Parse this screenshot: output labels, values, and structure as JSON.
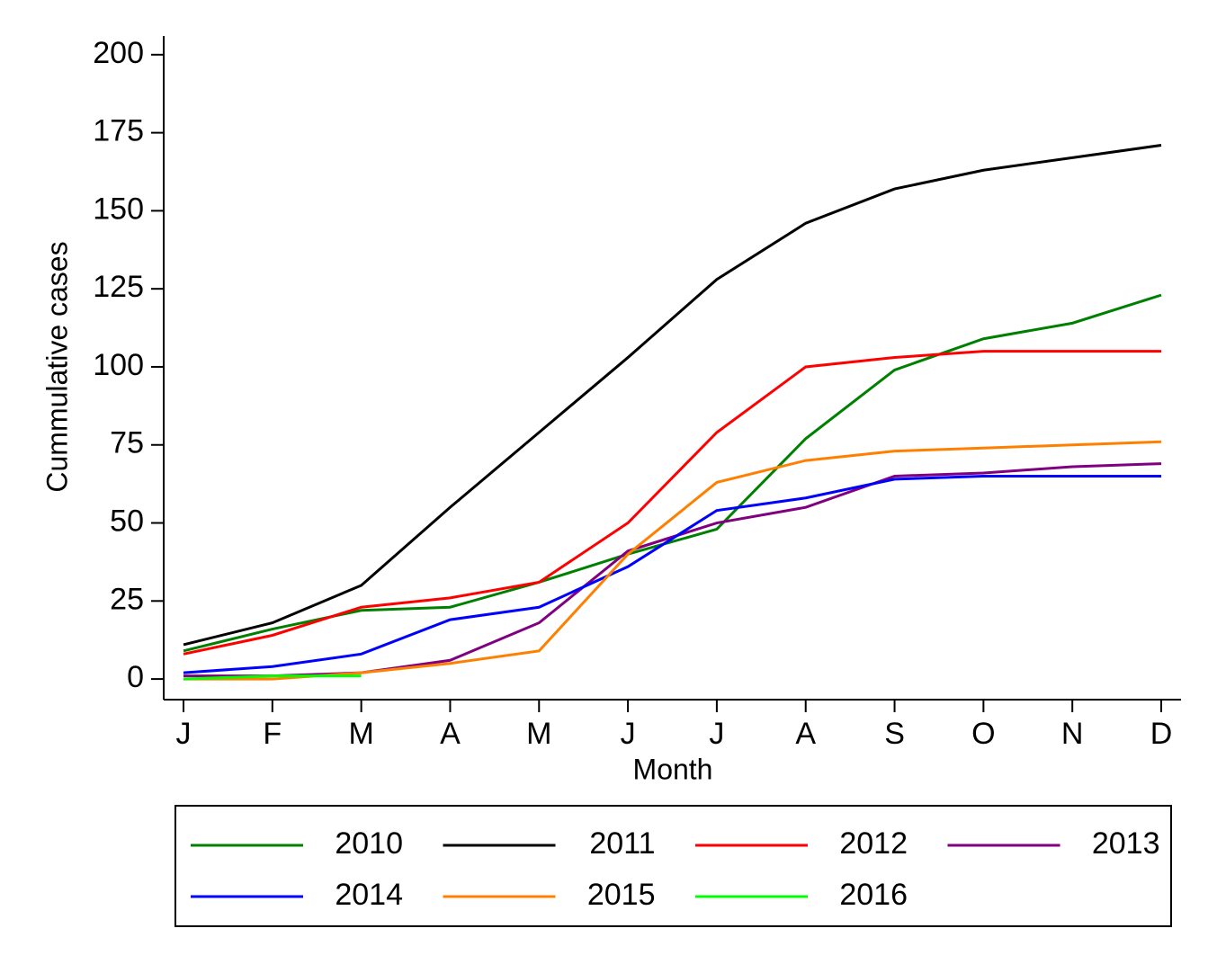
{
  "chart_data": {
    "type": "line",
    "xlabel": "Month",
    "ylabel": "Cummulative cases",
    "categories": [
      "J",
      "F",
      "M",
      "A",
      "M",
      "J",
      "J",
      "A",
      "S",
      "O",
      "N",
      "D"
    ],
    "series": [
      {
        "name": "2010",
        "color": "#008000",
        "values": [
          9,
          16,
          22,
          23,
          31,
          40,
          48,
          77,
          99,
          109,
          114,
          123
        ]
      },
      {
        "name": "2011",
        "color": "#000000",
        "values": [
          11,
          18,
          30,
          55,
          79,
          103,
          128,
          146,
          157,
          163,
          167,
          171
        ]
      },
      {
        "name": "2012",
        "color": "#ff0000",
        "values": [
          8,
          14,
          23,
          26,
          31,
          50,
          79,
          100,
          103,
          105,
          105,
          105
        ]
      },
      {
        "name": "2013",
        "color": "#800080",
        "values": [
          1,
          1,
          2,
          6,
          18,
          41,
          50,
          55,
          65,
          66,
          68,
          69
        ]
      },
      {
        "name": "2014",
        "color": "#0000ff",
        "values": [
          2,
          4,
          8,
          19,
          23,
          36,
          54,
          58,
          64,
          65,
          65,
          65
        ]
      },
      {
        "name": "2015",
        "color": "#ff8000",
        "values": [
          0,
          0,
          2,
          5,
          9,
          40,
          63,
          70,
          73,
          74,
          75,
          76
        ]
      },
      {
        "name": "2016",
        "color": "#00ff00",
        "values": [
          0,
          1,
          1,
          null,
          null,
          null,
          null,
          null,
          null,
          null,
          null,
          null
        ]
      }
    ],
    "ylim": [
      -6.6,
      206
    ],
    "yticks": [
      0,
      25,
      50,
      75,
      100,
      125,
      150,
      175,
      200
    ],
    "grid": false,
    "legend": "bottom"
  }
}
